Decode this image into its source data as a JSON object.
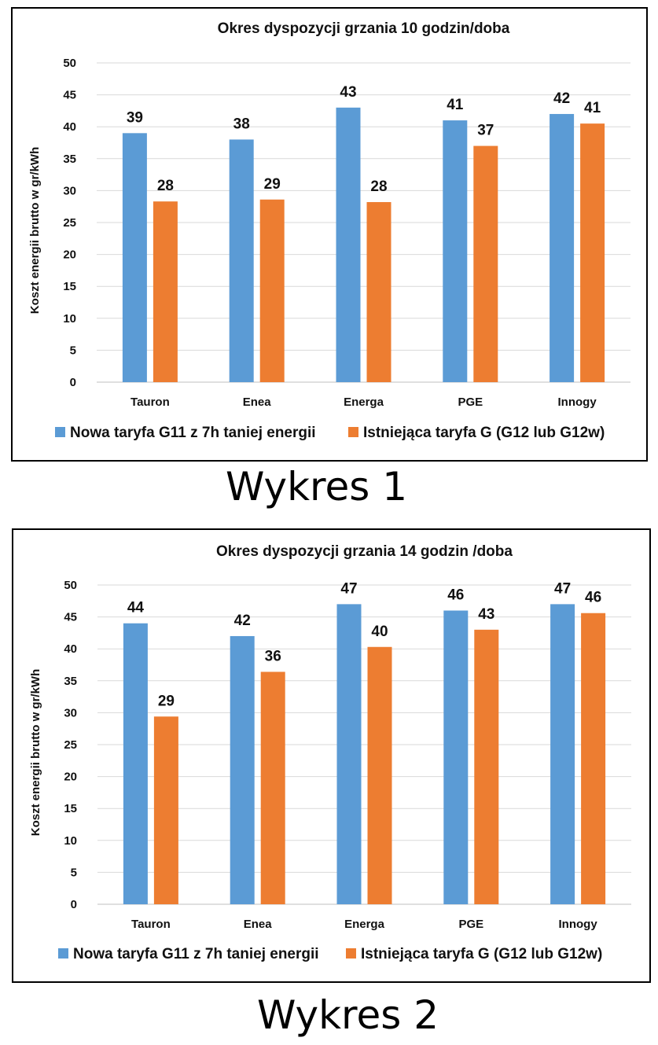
{
  "chart_data": [
    {
      "type": "bar",
      "title": "Okres dyspozycji grzania 10 godzin/doba",
      "xlabel": "",
      "ylabel": "Koszt energii brutto w gr/kWh",
      "ylim": [
        0,
        50
      ],
      "yticks": [
        "0",
        "5",
        "10",
        "15",
        "20",
        "25",
        "30",
        "35",
        "40",
        "45",
        "50"
      ],
      "grid": true,
      "legend": "bottom",
      "categories": [
        "Tauron",
        "Enea",
        "Energa",
        "PGE",
        "Innogy"
      ],
      "series": [
        {
          "name": "Nowa taryfa G11 z 7h taniej energii",
          "color": "#5b9bd5",
          "values": [
            39,
            38,
            43,
            41,
            42
          ],
          "labels": [
            "39",
            "38",
            "43",
            "41",
            "42"
          ]
        },
        {
          "name": "Istniejąca taryfa G (G12 lub G12w)",
          "color": "#ed7d31",
          "values": [
            28.3,
            28.6,
            28.2,
            37,
            40.5
          ],
          "labels": [
            "28",
            "29",
            "28",
            "37",
            "41"
          ]
        }
      ]
    },
    {
      "type": "bar",
      "title": "Okres dyspozycji grzania 14 godzin /doba",
      "xlabel": "",
      "ylabel": "Koszt energii brutto w gr/kWh",
      "ylim": [
        0,
        50
      ],
      "yticks": [
        "0",
        "5",
        "10",
        "15",
        "20",
        "25",
        "30",
        "35",
        "40",
        "45",
        "50"
      ],
      "grid": true,
      "legend": "bottom",
      "categories": [
        "Tauron",
        "Enea",
        "Energa",
        "PGE",
        "Innogy"
      ],
      "series": [
        {
          "name": "Nowa taryfa G11 z 7h taniej energii",
          "color": "#5b9bd5",
          "values": [
            44,
            42,
            47,
            46,
            47
          ],
          "labels": [
            "44",
            "42",
            "47",
            "46",
            "47"
          ]
        },
        {
          "name": "Istniejąca taryfa G (G12 lub G12w)",
          "color": "#ed7d31",
          "values": [
            29.4,
            36.4,
            40.3,
            43,
            45.6
          ],
          "labels": [
            "29",
            "36",
            "40",
            "43",
            "46"
          ]
        }
      ]
    }
  ],
  "captions": [
    "Wykres 1",
    "Wykres 2"
  ]
}
